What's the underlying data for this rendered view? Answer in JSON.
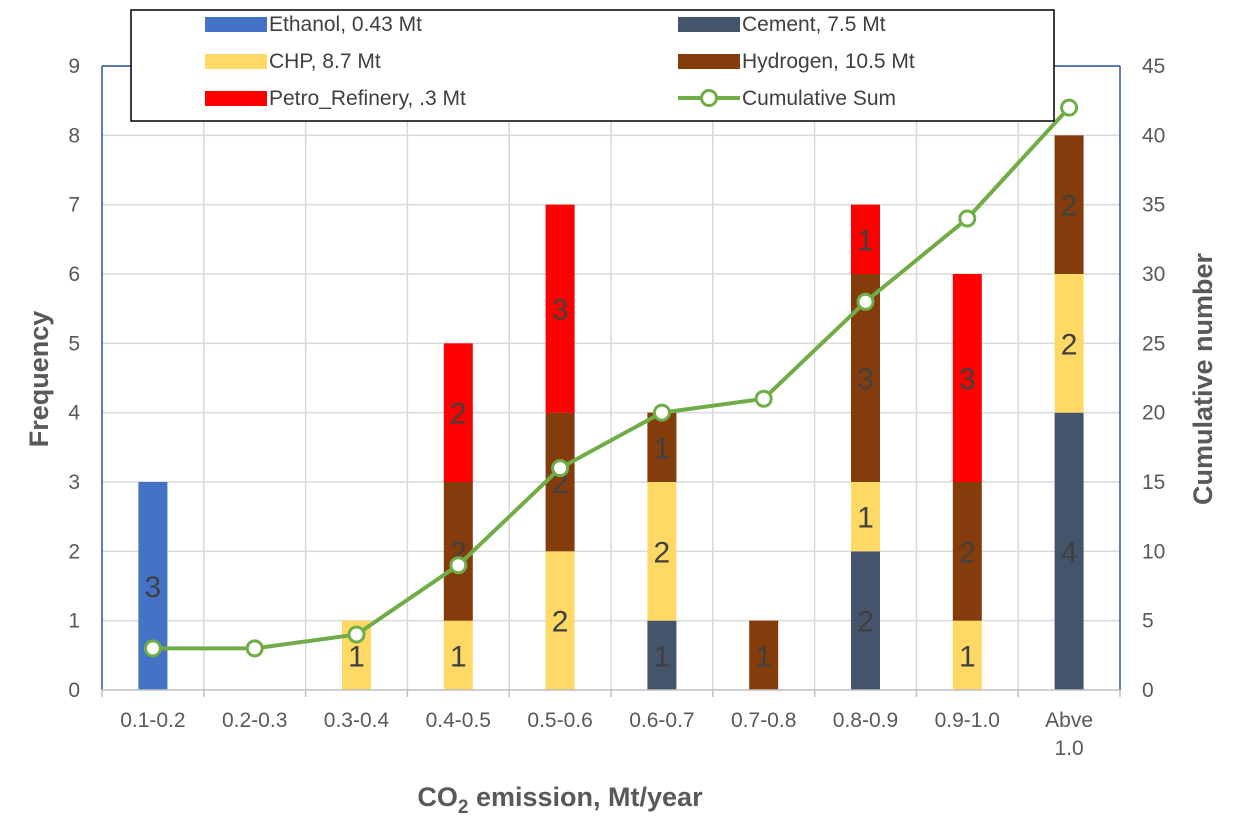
{
  "chart_data": {
    "type": "bar",
    "stacked": true,
    "categories": [
      "0.1-0.2",
      "0.2-0.3",
      "0.3-0.4",
      "0.4-0.5",
      "0.5-0.6",
      "0.6-0.7",
      "0.7-0.8",
      "0.8-0.9",
      "0.9-1.0",
      "Abve 1.0"
    ],
    "category_lines": [
      [
        "0.1-0.2"
      ],
      [
        "0.2-0.3"
      ],
      [
        "0.3-0.4"
      ],
      [
        "0.4-0.5"
      ],
      [
        "0.5-0.6"
      ],
      [
        "0.6-0.7"
      ],
      [
        "0.7-0.8"
      ],
      [
        "0.8-0.9"
      ],
      [
        "0.9-1.0"
      ],
      [
        "Abve",
        "1.0"
      ]
    ],
    "series": [
      {
        "name": "Ethanol, 0.43 Mt",
        "color": "#4472C4",
        "values": [
          3,
          0,
          0,
          0,
          0,
          0,
          0,
          0,
          0,
          0
        ]
      },
      {
        "name": "Cement, 7.5 Mt",
        "color": "#44546A",
        "values": [
          0,
          0,
          0,
          0,
          0,
          1,
          0,
          2,
          0,
          4
        ]
      },
      {
        "name": "CHP, 8.7 Mt",
        "color": "#FFD966",
        "values": [
          0,
          0,
          1,
          1,
          2,
          2,
          0,
          1,
          1,
          2
        ]
      },
      {
        "name": "Hydrogen, 10.5 Mt",
        "color": "#843C0C",
        "values": [
          0,
          0,
          0,
          2,
          2,
          1,
          1,
          3,
          2,
          2
        ]
      },
      {
        "name": "Petro_Refinery, .3 Mt",
        "color": "#FF0000",
        "values": [
          0,
          0,
          0,
          2,
          3,
          0,
          0,
          1,
          3,
          0
        ]
      }
    ],
    "line_series": {
      "name": "Cumulative Sum",
      "color": "#70AD47",
      "axis": "right",
      "values": [
        3,
        3,
        4,
        9,
        16,
        20,
        21,
        28,
        34,
        42
      ]
    },
    "legend_order": [
      {
        "name": "Ethanol, 0.43 Mt",
        "kind": "bar",
        "color": "#4472C4"
      },
      {
        "name": "Cement, 7.5 Mt",
        "kind": "bar",
        "color": "#44546A"
      },
      {
        "name": "CHP, 8.7 Mt",
        "kind": "bar",
        "color": "#FFD966"
      },
      {
        "name": "Hydrogen, 10.5 Mt",
        "kind": "bar",
        "color": "#843C0C"
      },
      {
        "name": "Petro_Refinery, .3 Mt",
        "kind": "bar",
        "color": "#FF0000"
      },
      {
        "name": "Cumulative Sum",
        "kind": "line",
        "color": "#70AD47"
      }
    ],
    "legend_position": "top",
    "xlabel": {
      "main": "CO",
      "sub": "2",
      "rest": " emission, Mt/year"
    },
    "ylabel": "Frequency",
    "y2label": "Cumulative number",
    "ylim": [
      0,
      9
    ],
    "yticks": [
      0,
      1,
      2,
      3,
      4,
      5,
      6,
      7,
      8,
      9
    ],
    "y2lim": [
      0,
      45
    ],
    "y2ticks": [
      0,
      5,
      10,
      15,
      20,
      25,
      30,
      35,
      40,
      45
    ],
    "grid": true,
    "colors": {
      "grid": "#D9D9D9",
      "plot_border": "#2F5597",
      "text": "#595959"
    }
  }
}
